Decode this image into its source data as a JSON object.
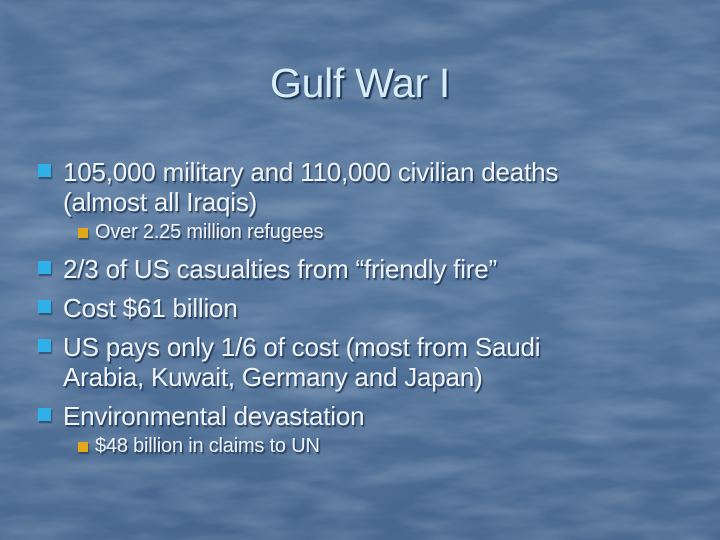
{
  "slide": {
    "title": "Gulf War I",
    "bullets": [
      {
        "level": 1,
        "text": "105,000 military and 110,000 civilian deaths (almost all Iraqis)"
      },
      {
        "level": 2,
        "text": "Over 2.25 million refugees"
      },
      {
        "level": 1,
        "text": "2/3 of US casualties from “friendly fire”"
      },
      {
        "level": 1,
        "text": "Cost $61 billion"
      },
      {
        "level": 1,
        "text": "US pays only 1/6 of cost (most from Saudi Arabia, Kuwait, Germany and Japan)"
      },
      {
        "level": 1,
        "text": "Environmental devastation"
      },
      {
        "level": 2,
        "text": "$48 billion in claims to UN"
      }
    ],
    "colors": {
      "background": "#4e7098",
      "title_text": "#d7eef6",
      "body_text": "#f1f4f6",
      "bullet_level1": "#2fb0e8",
      "bullet_level2": "#e2a81c"
    }
  }
}
